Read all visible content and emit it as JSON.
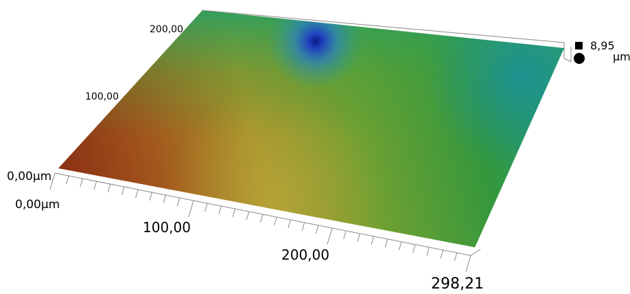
{
  "x_axis": {
    "labels": [
      "0,00µm",
      "100,00",
      "200,00",
      "298,21"
    ]
  },
  "y_axis": {
    "labels": [
      "0,00µm",
      "100,00",
      "200,00"
    ]
  },
  "z_axis": {
    "max": "8,95",
    "unit": "µm"
  }
}
